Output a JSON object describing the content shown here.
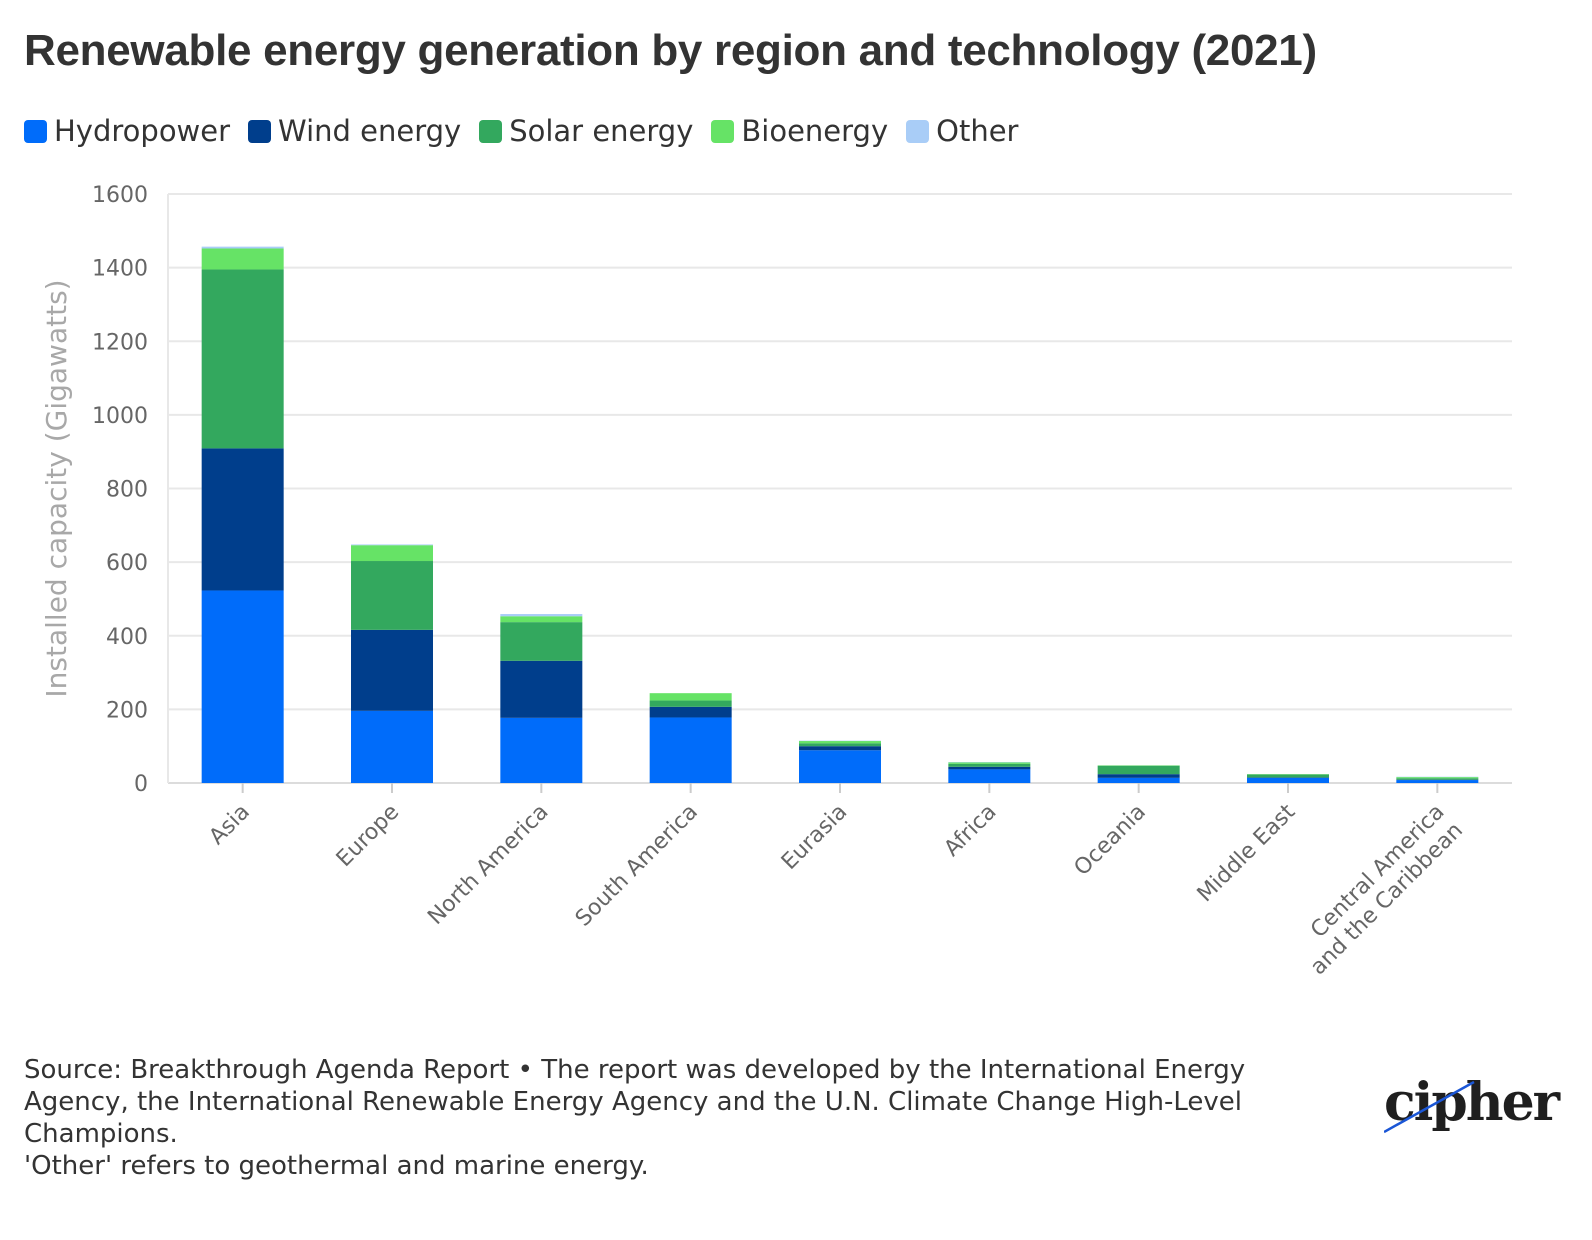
{
  "title": "Renewable energy generation by region and technology (2021)",
  "legend": [
    {
      "label": "Hydropower",
      "color": "#006cfa"
    },
    {
      "label": "Wind energy",
      "color": "#003e8c"
    },
    {
      "label": "Solar energy",
      "color": "#33a85e"
    },
    {
      "label": "Bioenergy",
      "color": "#66e366"
    },
    {
      "label": "Other",
      "color": "#a9cdf7"
    }
  ],
  "chart_data": {
    "type": "bar",
    "stacked": true,
    "categories": [
      "Asia",
      "Europe",
      "North America",
      "South America",
      "Eurasia",
      "Africa",
      "Oceania",
      "Middle East",
      "Central America and the Caribbean"
    ],
    "series": [
      {
        "name": "Hydropower",
        "color": "#006cfa",
        "values": [
          523,
          196,
          177,
          178,
          89,
          37,
          14,
          14,
          8
        ]
      },
      {
        "name": "Wind energy",
        "color": "#003e8c",
        "values": [
          386,
          220,
          155,
          29,
          11,
          7,
          10,
          1,
          1
        ]
      },
      {
        "name": "Solar energy",
        "color": "#33a85e",
        "values": [
          486,
          187,
          105,
          17,
          8,
          8,
          23,
          8,
          4
        ]
      },
      {
        "name": "Bioenergy",
        "color": "#66e366",
        "values": [
          57,
          43,
          16,
          20,
          6,
          4,
          1,
          1,
          3
        ]
      },
      {
        "name": "Other",
        "color": "#a9cdf7",
        "values": [
          5,
          2,
          6,
          0,
          1,
          1,
          0,
          0,
          1
        ]
      }
    ],
    "ylabel": "Installed capacity (Gigawatts)",
    "ylim": [
      0,
      1600
    ],
    "yticks": [
      0,
      200,
      400,
      600,
      800,
      1000,
      1200,
      1400,
      1600
    ],
    "grid": true,
    "legend_position": "top-left"
  },
  "notes": {
    "source": "Source: Breakthrough Agenda Report • The report was developed by the International Energy Agency, the International Renewable Energy Agency and the U.N. Climate Change High-Level Champions.",
    "other_note": "'Other' refers to geothermal and marine energy."
  },
  "logo": {
    "text": "cipher"
  }
}
